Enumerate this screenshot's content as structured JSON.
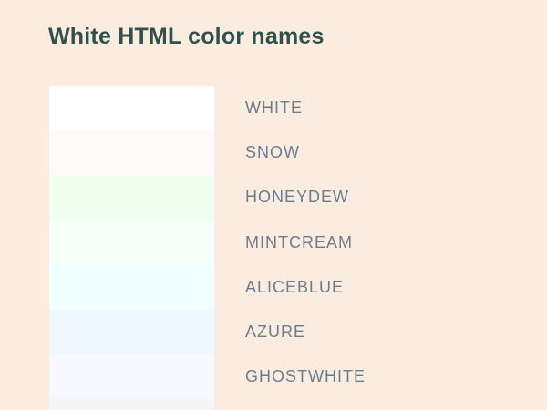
{
  "chart_data": {
    "type": "table",
    "title": "White HTML color names",
    "columns": [
      "swatch_color",
      "color_name"
    ],
    "rows": [
      {
        "name": "WHITE",
        "hex": "#FFFFFF"
      },
      {
        "name": "SNOW",
        "hex": "#FFFAFA"
      },
      {
        "name": "HONEYDEW",
        "hex": "#F0FFF0"
      },
      {
        "name": "MINTCREAM",
        "hex": "#F5FFFA"
      },
      {
        "name": "ALICEBLUE",
        "hex": "#F0FFFF"
      },
      {
        "name": "AZURE",
        "hex": "#F0F8FF"
      },
      {
        "name": "GHOSTWHITE",
        "hex": "#F8F8FF"
      }
    ],
    "partial_bottom_row_hex": "#F5F5F5",
    "legend_position": "none",
    "grid": false
  },
  "theme": {
    "page_background": "#FAEDE0",
    "title_color": "#31504B",
    "label_color": "#6B7C8F"
  }
}
